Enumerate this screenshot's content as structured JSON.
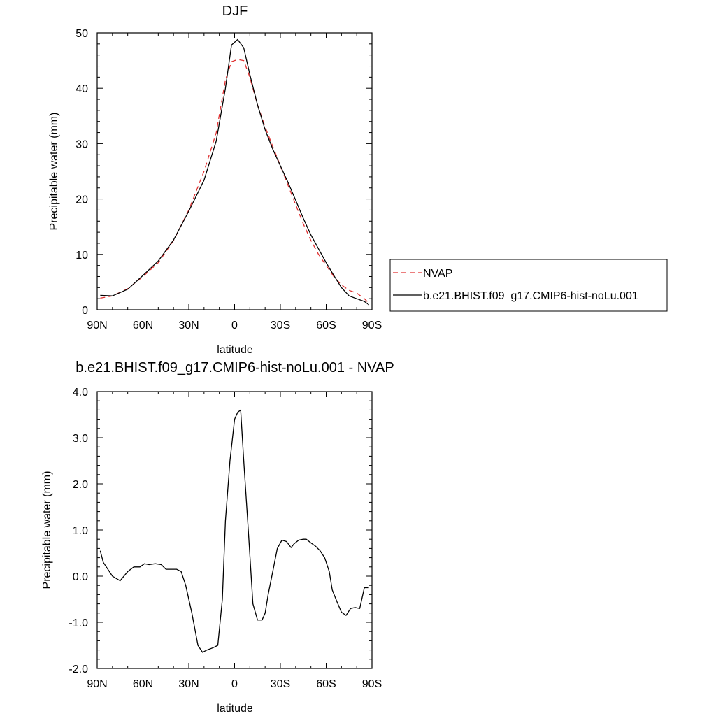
{
  "chart_data": [
    {
      "type": "line",
      "title": "DJF",
      "xlabel": "latitude",
      "ylabel": "Precipitable water (mm)",
      "xlim": [
        -90,
        90
      ],
      "ylim": [
        0,
        50
      ],
      "x_ticks": [
        -90,
        -60,
        -30,
        0,
        30,
        60,
        90
      ],
      "x_tick_labels": [
        "90N",
        "60N",
        "30N",
        "0",
        "30S",
        "60S",
        "90S"
      ],
      "y_ticks": [
        0,
        10,
        20,
        30,
        40,
        50
      ],
      "y_tick_labels": [
        "0",
        "10",
        "20",
        "30",
        "40",
        "50"
      ],
      "legend": "right",
      "series": [
        {
          "name": "NVAP",
          "style": "dashed",
          "color": "#e03030",
          "x": [
            -88,
            -80,
            -70,
            -60,
            -50,
            -40,
            -30,
            -20,
            -12,
            -6,
            -2,
            2,
            6,
            10,
            15,
            20,
            25,
            30,
            35,
            40,
            45,
            50,
            55,
            60,
            65,
            70,
            75,
            80,
            85,
            88
          ],
          "y": [
            2.1,
            2.5,
            3.8,
            6.0,
            8.5,
            12.5,
            18.0,
            25.0,
            32.0,
            41.5,
            44.8,
            45.2,
            45.0,
            42.0,
            37.0,
            33.0,
            29.5,
            26.0,
            22.5,
            19.0,
            15.5,
            12.5,
            10.0,
            8.0,
            6.0,
            4.5,
            3.5,
            3.0,
            2.0,
            1.2
          ]
        },
        {
          "name": "b.e21.BHIST.f09_g17.CMIP6-hist-noLu.001",
          "style": "solid",
          "color": "#000000",
          "x": [
            -88,
            -80,
            -70,
            -60,
            -50,
            -40,
            -30,
            -20,
            -12,
            -6,
            -2,
            2,
            6,
            10,
            15,
            20,
            25,
            30,
            35,
            40,
            45,
            50,
            55,
            60,
            65,
            70,
            75,
            80,
            85,
            88
          ],
          "y": [
            2.6,
            2.5,
            3.7,
            6.2,
            8.8,
            12.6,
            17.8,
            23.4,
            30.5,
            40.0,
            47.8,
            48.8,
            47.3,
            42.5,
            37.0,
            32.5,
            29.0,
            26.0,
            23.0,
            19.8,
            16.5,
            13.5,
            11.0,
            8.5,
            6.2,
            4.0,
            2.5,
            2.0,
            1.5,
            0.9
          ]
        }
      ]
    },
    {
      "type": "line",
      "title": "b.e21.BHIST.f09_g17.CMIP6-hist-noLu.001 - NVAP",
      "xlabel": "latitude",
      "ylabel": "Precipitable water (mm)",
      "xlim": [
        -90,
        90
      ],
      "ylim": [
        -2.0,
        4.0
      ],
      "x_ticks": [
        -90,
        -60,
        -30,
        0,
        30,
        60,
        90
      ],
      "x_tick_labels": [
        "90N",
        "60N",
        "30N",
        "0",
        "30S",
        "60S",
        "90S"
      ],
      "y_ticks": [
        -2.0,
        -1.0,
        0.0,
        1.0,
        2.0,
        3.0,
        4.0
      ],
      "y_tick_labels": [
        "-2.0",
        "-1.0",
        "0.0",
        "1.0",
        "2.0",
        "3.0",
        "4.0"
      ],
      "series": [
        {
          "style": "solid",
          "color": "#000000",
          "x": [
            -88,
            -86,
            -80,
            -75,
            -70,
            -66,
            -62,
            -59,
            -56,
            -52,
            -48,
            -45,
            -42,
            -38,
            -35,
            -32,
            -28,
            -24,
            -21,
            -18,
            -14,
            -11,
            -8,
            -6,
            -3,
            0,
            2,
            4,
            6,
            9,
            12,
            15,
            18,
            20,
            22,
            25,
            28,
            31,
            34,
            37,
            39,
            42,
            45,
            47,
            50,
            53,
            56,
            59,
            62,
            64,
            67,
            70,
            73,
            76,
            79,
            82,
            85,
            88
          ],
          "y": [
            0.55,
            0.3,
            0.0,
            -0.1,
            0.1,
            0.2,
            0.2,
            0.27,
            0.25,
            0.27,
            0.25,
            0.15,
            0.15,
            0.15,
            0.1,
            -0.2,
            -0.8,
            -1.5,
            -1.65,
            -1.6,
            -1.55,
            -1.5,
            -0.5,
            1.2,
            2.5,
            3.4,
            3.55,
            3.6,
            2.5,
            1.0,
            -0.6,
            -0.95,
            -0.95,
            -0.8,
            -0.4,
            0.1,
            0.6,
            0.78,
            0.75,
            0.62,
            0.7,
            0.78,
            0.8,
            0.8,
            0.72,
            0.65,
            0.55,
            0.4,
            0.1,
            -0.3,
            -0.55,
            -0.78,
            -0.85,
            -0.7,
            -0.68,
            -0.7,
            -0.25,
            -0.25
          ]
        }
      ]
    }
  ]
}
